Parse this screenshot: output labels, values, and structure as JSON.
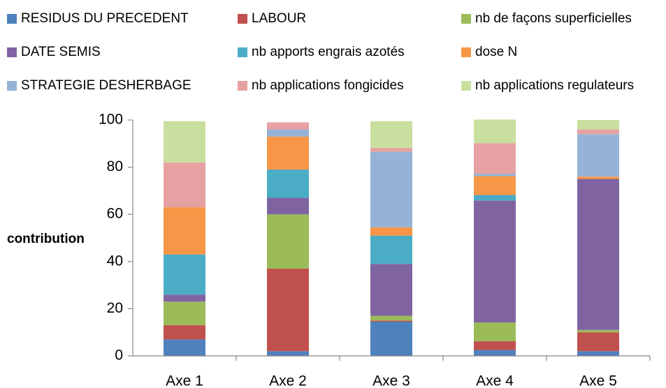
{
  "chart_data": {
    "type": "stacked_bar",
    "y_label": "contribution",
    "categories": [
      "Axe 1",
      "Axe 2",
      "Axe 3",
      "Axe 4",
      "Axe 5"
    ],
    "ylim": [
      0,
      100
    ],
    "yticks": [
      0,
      20,
      40,
      60,
      80,
      100
    ],
    "series": [
      {
        "name": "RESIDUS DU PRECEDENT",
        "color": "#4f81bd",
        "values": [
          7,
          2,
          14.5,
          2.5,
          2
        ]
      },
      {
        "name": "LABOUR",
        "color": "#c0504d",
        "values": [
          6,
          35,
          0.5,
          3.7,
          8
        ]
      },
      {
        "name": "nb de façons superficielles",
        "color": "#9bbb59",
        "values": [
          10,
          23,
          2,
          8,
          1
        ]
      },
      {
        "name": "DATE SEMIS",
        "color": "#8064a2",
        "values": [
          3,
          7,
          22,
          51.7,
          64
        ]
      },
      {
        "name": "nb apports engrais azotés",
        "color": "#4bacc6",
        "values": [
          17,
          12,
          12,
          2.3,
          0
        ]
      },
      {
        "name": "dose N",
        "color": "#f79646",
        "values": [
          20,
          14,
          3.5,
          8,
          1
        ]
      },
      {
        "name": "STRATEGIE DESHERBAGE",
        "color": "#95b3d7",
        "values": [
          0,
          3,
          32,
          1,
          18
        ]
      },
      {
        "name": "nb applications fongicides",
        "color": "#e6a2a2",
        "values": [
          19,
          3,
          1.7,
          13,
          2
        ]
      },
      {
        "name": "nb applications regulateurs",
        "color": "#c9df9f",
        "values": [
          17.5,
          0,
          11.3,
          10,
          4
        ]
      }
    ]
  }
}
